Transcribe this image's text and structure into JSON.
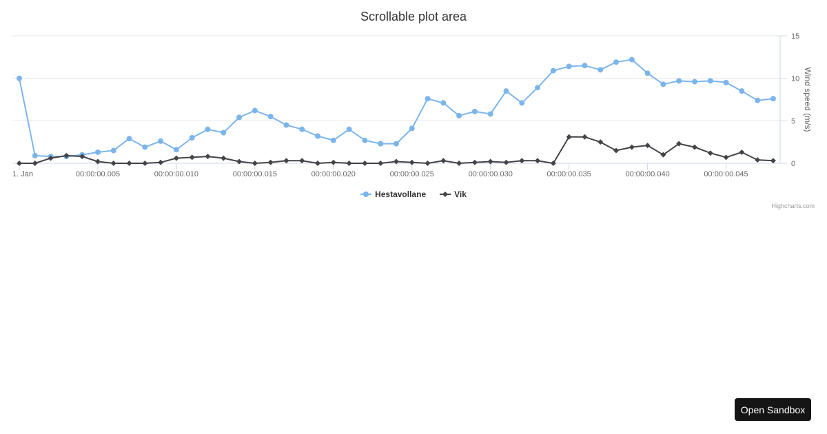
{
  "chart_data": {
    "type": "line",
    "title": "Scrollable plot area",
    "xlabel": "",
    "ylabel": "Wind speed (m/s)",
    "ylim": [
      0,
      15
    ],
    "yticks": [
      0,
      5,
      10,
      15
    ],
    "y_axis_position": "right",
    "grid": true,
    "legend_position": "bottom-center",
    "x_tick_labels": [
      "1. Jan",
      "00:00:00.005",
      "00:00:00.010",
      "00:00:00.015",
      "00:00:00.020",
      "00:00:00.025",
      "00:00:00.030",
      "00:00:00.035",
      "00:00:00.040",
      "00:00:00.045"
    ],
    "x": [
      0,
      1,
      2,
      3,
      4,
      5,
      6,
      7,
      8,
      9,
      10,
      11,
      12,
      13,
      14,
      15,
      16,
      17,
      18,
      19,
      20,
      21,
      22,
      23,
      24,
      25,
      26,
      27,
      28,
      29,
      30,
      31,
      32,
      33,
      34,
      35,
      36,
      37,
      38,
      39,
      40,
      41,
      42,
      43,
      44,
      45,
      46,
      47,
      48
    ],
    "series": [
      {
        "name": "Hestavollane",
        "color": "#7cb5ec",
        "marker": "circle",
        "values": [
          10.0,
          0.9,
          0.8,
          0.8,
          1.0,
          1.3,
          1.5,
          2.9,
          1.9,
          2.6,
          1.6,
          3.0,
          4.0,
          3.6,
          5.4,
          6.2,
          5.5,
          4.5,
          4.0,
          3.2,
          2.7,
          4.0,
          2.7,
          2.3,
          2.3,
          4.1,
          7.6,
          7.1,
          5.6,
          6.1,
          5.8,
          8.5,
          7.1,
          8.9,
          10.9,
          11.4,
          11.5,
          11.0,
          11.9,
          12.2,
          10.6,
          9.3,
          9.7,
          9.6,
          9.7,
          9.5,
          8.5,
          7.4,
          7.6
        ]
      },
      {
        "name": "Vik",
        "color": "#434348",
        "marker": "diamond",
        "values": [
          0,
          0,
          0.6,
          0.9,
          0.8,
          0.2,
          0,
          0,
          0,
          0.1,
          0.6,
          0.7,
          0.8,
          0.6,
          0.2,
          0,
          0.1,
          0.3,
          0.3,
          0,
          0.1,
          0,
          0,
          0,
          0.2,
          0.1,
          0,
          0.3,
          0,
          0.1,
          0.2,
          0.1,
          0.3,
          0.3,
          0,
          3.1,
          3.1,
          2.5,
          1.5,
          1.9,
          2.1,
          1.0,
          2.3,
          1.9,
          1.2,
          0.7,
          1.3,
          0.4,
          0.3
        ]
      }
    ]
  },
  "legend": {
    "items": [
      {
        "label": "Hestavollane",
        "color": "#7cb5ec"
      },
      {
        "label": "Vik",
        "color": "#434348"
      }
    ]
  },
  "credits": "Highcharts.com",
  "button": {
    "label": "Open Sandbox"
  }
}
